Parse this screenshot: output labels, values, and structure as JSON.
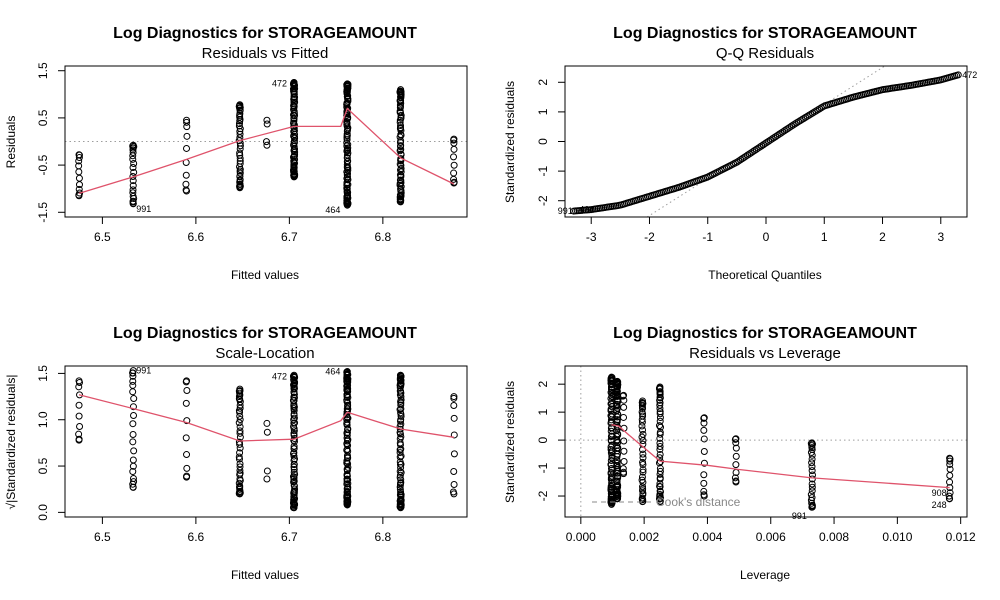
{
  "colors": {
    "smooth_line": "#df536b",
    "reference": "#9e9e9e",
    "points": "#000000",
    "cook": "#888888"
  },
  "chart_data": [
    {
      "type": "scatter",
      "title": "Log Diagnostics for STORAGEAMOUNT",
      "subtitle": "Residuals vs Fitted",
      "xlabel": "Fitted values",
      "ylabel": "Residuals",
      "xlim": [
        6.46,
        6.89
      ],
      "ylim": [
        -1.6,
        1.6
      ],
      "xticks": [
        6.5,
        6.6,
        6.7,
        6.8
      ],
      "yticks": [
        -1.5,
        -0.5,
        0.5,
        1.5
      ],
      "xtick_labels": [
        "6.5",
        "6.6",
        "6.7",
        "6.8"
      ],
      "ytick_labels": [
        "-1.5",
        "-0.5",
        "0.5",
        "1.5"
      ],
      "reference_line": {
        "orientation": "horizontal",
        "y": 0
      },
      "groups": [
        {
          "x": 6.475,
          "ymin": -1.15,
          "ymax": -0.28,
          "n": 12
        },
        {
          "x": 6.533,
          "ymin": -1.32,
          "ymax": -0.08,
          "n": 22
        },
        {
          "x": 6.59,
          "ymin": -1.05,
          "ymax": 0.45,
          "n": 10
        },
        {
          "x": 6.647,
          "ymin": -0.98,
          "ymax": 0.78,
          "n": 45
        },
        {
          "x": 6.676,
          "ymin": -0.08,
          "ymax": 0.45,
          "n": 4
        },
        {
          "x": 6.705,
          "ymin": -0.75,
          "ymax": 1.25,
          "n": 90
        },
        {
          "x": 6.762,
          "ymin": -1.35,
          "ymax": 1.22,
          "n": 110
        },
        {
          "x": 6.819,
          "ymin": -1.28,
          "ymax": 1.1,
          "n": 80
        },
        {
          "x": 6.876,
          "ymin": -0.88,
          "ymax": 0.05,
          "n": 10
        }
      ],
      "smooth_line": {
        "x": [
          6.475,
          6.533,
          6.59,
          6.647,
          6.705,
          6.755,
          6.762,
          6.819,
          6.876
        ],
        "y": [
          -1.1,
          -0.75,
          -0.38,
          0.02,
          0.32,
          0.32,
          0.7,
          -0.35,
          -0.9
        ]
      },
      "point_labels": [
        {
          "text": "472",
          "x": 6.705,
          "y": 1.25
        },
        {
          "text": "991",
          "x": 6.533,
          "y": -1.32
        },
        {
          "text": "464",
          "x": 6.762,
          "y": -1.35
        }
      ]
    },
    {
      "type": "scatter",
      "title": "Log Diagnostics for STORAGEAMOUNT",
      "subtitle": "Q-Q Residuals",
      "xlabel": "Theoretical Quantiles",
      "ylabel": "Standardized residuals",
      "xlim": [
        -3.45,
        3.45
      ],
      "ylim": [
        -2.55,
        2.55
      ],
      "xticks": [
        -3,
        -2,
        -1,
        0,
        1,
        2,
        3
      ],
      "yticks": [
        -2,
        -1,
        0,
        1,
        2
      ],
      "xtick_labels": [
        "-3",
        "-2",
        "-1",
        "0",
        "1",
        "2",
        "3"
      ],
      "ytick_labels": [
        "-2",
        "-1",
        "0",
        "1",
        "2"
      ],
      "reference_line": {
        "orientation": "diagonal",
        "intercept": 0,
        "slope": 1.25
      },
      "curve": {
        "x": [
          -3.3,
          -3.0,
          -2.5,
          -2.0,
          -1.5,
          -1.0,
          -0.5,
          0.0,
          0.5,
          1.0,
          1.5,
          2.0,
          2.5,
          3.0,
          3.3
        ],
        "y": [
          -2.35,
          -2.3,
          -2.15,
          -1.85,
          -1.55,
          -1.2,
          -0.7,
          -0.05,
          0.6,
          1.2,
          1.5,
          1.75,
          1.9,
          2.08,
          2.25
        ]
      },
      "n_points": 220,
      "point_labels": [
        {
          "text": "472",
          "x": 3.3,
          "y": 2.25
        },
        {
          "text": "991",
          "x": -3.3,
          "y": -2.35
        },
        {
          "text": "464",
          "x": -3.0,
          "y": -2.3
        }
      ]
    },
    {
      "type": "scatter",
      "title": "Log Diagnostics for STORAGEAMOUNT",
      "subtitle": "Scale-Location",
      "xlabel": "Fitted values",
      "ylabel": "√|Standardized residuals|",
      "xlim": [
        6.46,
        6.89
      ],
      "ylim": [
        -0.05,
        1.58
      ],
      "xticks": [
        6.5,
        6.6,
        6.7,
        6.8
      ],
      "yticks": [
        0.0,
        0.5,
        1.0,
        1.5
      ],
      "xtick_labels": [
        "6.5",
        "6.6",
        "6.7",
        "6.8"
      ],
      "ytick_labels": [
        "0.0",
        "0.5",
        "1.0",
        "1.5"
      ],
      "groups": [
        {
          "x": 6.475,
          "ymin": 0.78,
          "ymax": 1.42,
          "n": 10
        },
        {
          "x": 6.533,
          "ymin": 0.27,
          "ymax": 1.53,
          "n": 22
        },
        {
          "x": 6.59,
          "ymin": 0.38,
          "ymax": 1.42,
          "n": 10
        },
        {
          "x": 6.647,
          "ymin": 0.2,
          "ymax": 1.33,
          "n": 45
        },
        {
          "x": 6.676,
          "ymin": 0.36,
          "ymax": 0.96,
          "n": 4
        },
        {
          "x": 6.705,
          "ymin": 0.05,
          "ymax": 1.48,
          "n": 90
        },
        {
          "x": 6.762,
          "ymin": 0.08,
          "ymax": 1.52,
          "n": 110
        },
        {
          "x": 6.819,
          "ymin": 0.05,
          "ymax": 1.48,
          "n": 80
        },
        {
          "x": 6.876,
          "ymin": 0.2,
          "ymax": 1.25,
          "n": 10
        }
      ],
      "smooth_line": {
        "x": [
          6.475,
          6.533,
          6.59,
          6.647,
          6.705,
          6.755,
          6.762,
          6.819,
          6.876
        ],
        "y": [
          1.27,
          1.12,
          0.97,
          0.77,
          0.79,
          0.99,
          1.08,
          0.9,
          0.81
        ]
      },
      "point_labels": [
        {
          "text": "991",
          "x": 6.533,
          "y": 1.53
        },
        {
          "text": "472",
          "x": 6.705,
          "y": 1.48
        },
        {
          "text": "464",
          "x": 6.762,
          "y": 1.52
        }
      ]
    },
    {
      "type": "scatter",
      "title": "Log Diagnostics for STORAGEAMOUNT",
      "subtitle": "Residuals vs Leverage",
      "xlabel": "Leverage",
      "ylabel": "Standardized residuals",
      "xlim": [
        -0.0005,
        0.0122
      ],
      "ylim": [
        -2.75,
        2.65
      ],
      "xticks": [
        0.0,
        0.002,
        0.004,
        0.006,
        0.008,
        0.01,
        0.012
      ],
      "yticks": [
        -2,
        -1,
        0,
        1,
        2
      ],
      "xtick_labels": [
        "0.000",
        "0.002",
        "0.004",
        "0.006",
        "0.008",
        "0.010",
        "0.012"
      ],
      "ytick_labels": [
        "-2",
        "-1",
        "0",
        "1",
        "2"
      ],
      "reference_lines": [
        {
          "orientation": "horizontal",
          "y": 0
        },
        {
          "orientation": "vertical",
          "x": 0
        }
      ],
      "groups": [
        {
          "x": 0.00097,
          "ymin": -2.3,
          "ymax": 2.25,
          "n": 90
        },
        {
          "x": 0.00115,
          "ymin": -2.1,
          "ymax": 2.1,
          "n": 90
        },
        {
          "x": 0.00135,
          "ymin": -1.2,
          "ymax": 1.6,
          "n": 12
        },
        {
          "x": 0.00195,
          "ymin": -2.2,
          "ymax": 1.4,
          "n": 40
        },
        {
          "x": 0.0025,
          "ymin": -2.2,
          "ymax": 1.9,
          "n": 50
        },
        {
          "x": 0.0039,
          "ymin": -2.0,
          "ymax": 0.8,
          "n": 12
        },
        {
          "x": 0.0049,
          "ymin": -1.5,
          "ymax": 0.05,
          "n": 10
        },
        {
          "x": 0.0073,
          "ymin": -2.4,
          "ymax": -0.1,
          "n": 25
        },
        {
          "x": 0.01165,
          "ymin": -2.1,
          "ymax": -0.65,
          "n": 12
        }
      ],
      "smooth_line": {
        "x": [
          0.00097,
          0.0012,
          0.0015,
          0.0025,
          0.004,
          0.005,
          0.0073,
          0.01165
        ],
        "y": [
          0.55,
          0.5,
          0.2,
          -0.75,
          -0.9,
          -1.05,
          -1.35,
          -1.7
        ]
      },
      "legend": {
        "text": "Cook's distance",
        "position": "bottom-left",
        "line_style": "dashed"
      },
      "point_labels": [
        {
          "text": "991",
          "x": 0.0073,
          "y": -2.4
        },
        {
          "text": "908",
          "x": 0.01165,
          "y": -2.0
        },
        {
          "text": "248",
          "x": 0.01165,
          "y": -2.15
        }
      ]
    }
  ]
}
